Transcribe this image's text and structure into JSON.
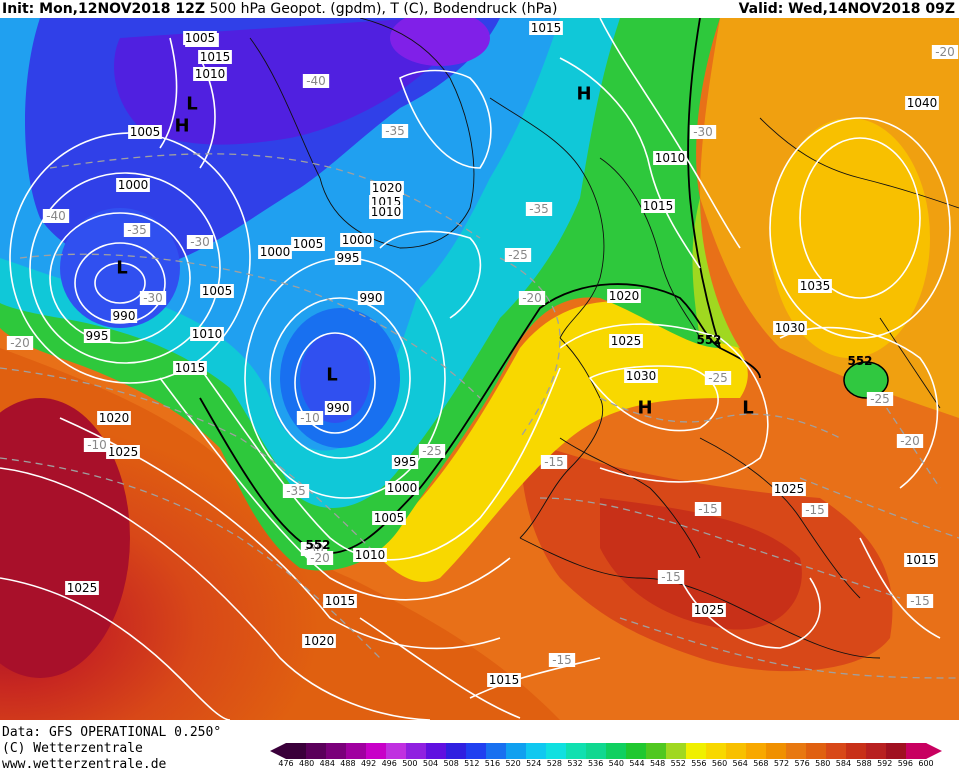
{
  "header": {
    "init": "Init: Mon,12NOV2018 12Z",
    "product": "500 hPa Geopot. (gpdm), T (C), Bodendruck (hPa)",
    "valid": "Valid: Wed,14NOV2018 09Z"
  },
  "footer": {
    "data_line": "Data: GFS OPERATIONAL 0.250°",
    "copyright": "(C) Wetterzentrale",
    "url": "www.wetterzentrale.de"
  },
  "colorbar": {
    "ticks": [
      "476",
      "480",
      "484",
      "488",
      "492",
      "496",
      "500",
      "504",
      "508",
      "512",
      "516",
      "520",
      "524",
      "528",
      "532",
      "536",
      "540",
      "544",
      "548",
      "552",
      "556",
      "560",
      "564",
      "568",
      "572",
      "576",
      "580",
      "584",
      "588",
      "592",
      "596",
      "600"
    ],
    "colors": [
      "#3a003a",
      "#5a005a",
      "#7a007a",
      "#a000a0",
      "#c800c8",
      "#c030e0",
      "#9020e0",
      "#6010e0",
      "#3020e0",
      "#2040f0",
      "#1870f0",
      "#10a0f0",
      "#10c8f0",
      "#10e0e0",
      "#10e0b0",
      "#10d890",
      "#10d060",
      "#20c830",
      "#50c820",
      "#a0d820",
      "#f0f000",
      "#f8d800",
      "#f8c000",
      "#f8a800",
      "#f09000",
      "#e87810",
      "#e06010",
      "#d84818",
      "#c83018",
      "#b82020",
      "#a01020",
      "#c80060"
    ]
  },
  "map_labels": {
    "pressure": [
      {
        "text": "1020"
      },
      {
        "text": "1015"
      },
      {
        "text": "1010"
      },
      {
        "text": "1005"
      },
      {
        "text": "1000"
      },
      {
        "text": "995"
      },
      {
        "text": "990"
      },
      {
        "text": "1020"
      },
      {
        "text": "1015"
      },
      {
        "text": "1010"
      },
      {
        "text": "1000"
      },
      {
        "text": "1005"
      },
      {
        "text": "1000"
      },
      {
        "text": "995"
      },
      {
        "text": "990"
      },
      {
        "text": "1005"
      },
      {
        "text": "1010"
      },
      {
        "text": "1015"
      },
      {
        "text": "1020"
      },
      {
        "text": "1025"
      },
      {
        "text": "990"
      },
      {
        "text": "995"
      },
      {
        "text": "1000"
      },
      {
        "text": "1005"
      },
      {
        "text": "1010"
      },
      {
        "text": "1015"
      },
      {
        "text": "1020"
      },
      {
        "text": "1025"
      },
      {
        "text": "1015"
      },
      {
        "text": "1005"
      },
      {
        "text": "1010"
      },
      {
        "text": "1015"
      },
      {
        "text": "1040"
      },
      {
        "text": "1035"
      },
      {
        "text": "1030"
      },
      {
        "text": "1020"
      },
      {
        "text": "1025"
      },
      {
        "text": "1030"
      },
      {
        "text": "1025"
      },
      {
        "text": "1015"
      },
      {
        "text": "1025"
      },
      {
        "text": "1015"
      }
    ],
    "temperature": [
      {
        "text": "-40"
      },
      {
        "text": "-40"
      },
      {
        "text": "-35"
      },
      {
        "text": "-35"
      },
      {
        "text": "-30"
      },
      {
        "text": "-30"
      },
      {
        "text": "-35"
      },
      {
        "text": "-30"
      },
      {
        "text": "-25"
      },
      {
        "text": "-20"
      },
      {
        "text": "-20"
      },
      {
        "text": "-10"
      },
      {
        "text": "-10"
      },
      {
        "text": "-35"
      },
      {
        "text": "-30"
      },
      {
        "text": "-25"
      },
      {
        "text": "-15"
      },
      {
        "text": "-15"
      },
      {
        "text": "-25"
      },
      {
        "text": "-15"
      },
      {
        "text": "-15"
      },
      {
        "text": "-25"
      },
      {
        "text": "-20"
      },
      {
        "text": "-15"
      },
      {
        "text": "-15"
      },
      {
        "text": "-20"
      },
      {
        "text": "-20"
      }
    ],
    "geopot": [
      {
        "text": "552"
      },
      {
        "text": "552"
      },
      {
        "text": "552"
      }
    ],
    "centers": [
      {
        "text": "L"
      },
      {
        "text": "H"
      },
      {
        "text": "L"
      },
      {
        "text": "L"
      },
      {
        "text": "H"
      },
      {
        "text": "H"
      },
      {
        "text": "L"
      }
    ]
  }
}
